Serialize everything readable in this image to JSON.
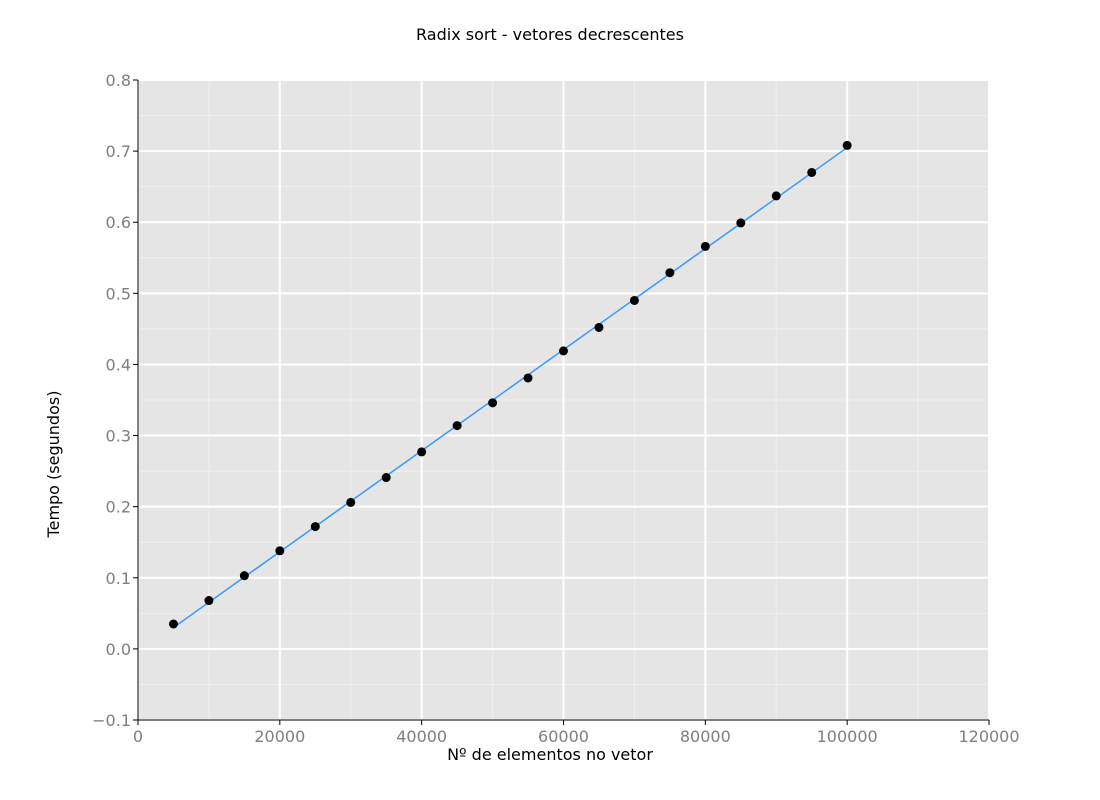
{
  "chart_data": {
    "type": "scatter",
    "title": "Radix sort - vetores decrescentes",
    "xlabel": "Nº de elementos no vetor",
    "ylabel": "Tempo (segundos)",
    "xlim": [
      0,
      120000
    ],
    "ylim": [
      -0.1,
      0.8
    ],
    "x_ticks": [
      "0",
      "20000",
      "40000",
      "60000",
      "80000",
      "100000",
      "120000"
    ],
    "y_ticks": [
      "−0.1",
      "0.0",
      "0.1",
      "0.2",
      "0.3",
      "0.4",
      "0.5",
      "0.6",
      "0.7",
      "0.8"
    ],
    "grid": true,
    "series": [
      {
        "x": [
          5000,
          10000,
          15000,
          20000,
          25000,
          30000,
          35000,
          40000,
          45000,
          50000,
          55000,
          60000,
          65000,
          70000,
          75000,
          80000,
          85000,
          90000,
          95000,
          100000
        ],
        "y": [
          0.035,
          0.068,
          0.103,
          0.138,
          0.172,
          0.206,
          0.241,
          0.277,
          0.314,
          0.346,
          0.381,
          0.419,
          0.452,
          0.49,
          0.529,
          0.566,
          0.599,
          0.637,
          0.67,
          0.708
        ],
        "color": "#000000"
      }
    ],
    "trend_line": {
      "x": [
        5000,
        100000
      ],
      "y": [
        0.03,
        0.705
      ],
      "color": "#3399ff"
    },
    "colors": {
      "panel_background": "#e5e5e5",
      "grid_major": "#ffffff",
      "grid_minor": "#f0f0f0"
    }
  }
}
